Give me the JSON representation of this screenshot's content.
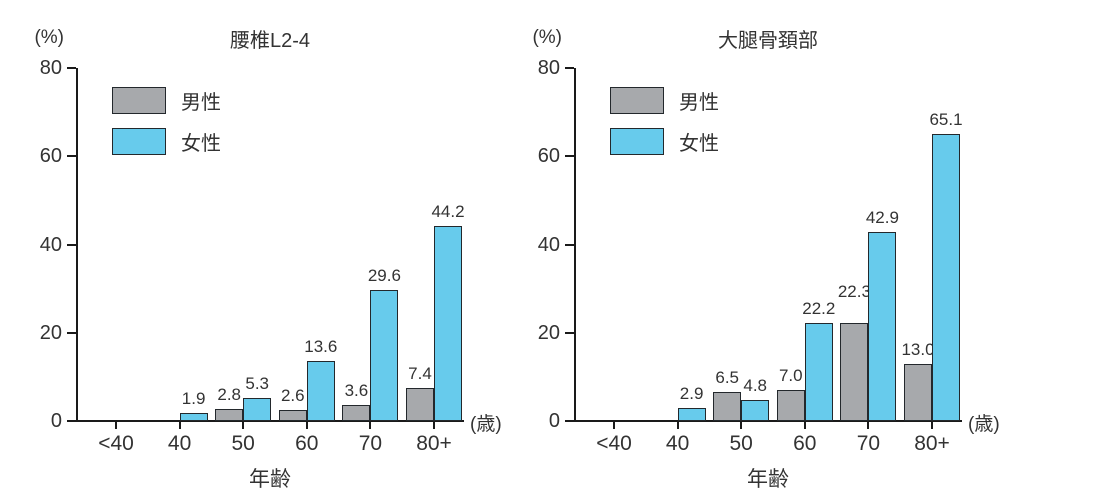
{
  "colors": {
    "male_fill": "#a7a9ac",
    "female_fill": "#67cbec",
    "bar_border": "#23282c",
    "axis": "#1a1a1a",
    "text": "#333333",
    "background": "#ffffff"
  },
  "chart_data": [
    {
      "type": "bar",
      "title": "腰椎L2-4",
      "y_axis_unit": "(%)",
      "x_axis_unit": "(歳)",
      "xlabel": "年齢",
      "ylabel": "",
      "ylim": [
        0,
        80
      ],
      "yticks": [
        0,
        20,
        40,
        60,
        80
      ],
      "grid": false,
      "legend_position": "top-left-inside",
      "categories": [
        "<40",
        "40",
        "50",
        "60",
        "70",
        "80+"
      ],
      "series": [
        {
          "name": "男性",
          "color": "#a7a9ac",
          "values": [
            null,
            null,
            2.8,
            2.6,
            3.6,
            7.4
          ],
          "labels": [
            "",
            "",
            "2.8",
            "2.6",
            "3.6",
            "7.4"
          ],
          "label_offsets": [
            0,
            0,
            0,
            0,
            0,
            0
          ]
        },
        {
          "name": "女性",
          "color": "#67cbec",
          "values": [
            null,
            1.9,
            5.3,
            13.6,
            29.6,
            44.2
          ],
          "labels": [
            "",
            "1.9",
            "5.3",
            "13.6",
            "29.6",
            "44.2"
          ],
          "label_offsets": [
            0,
            0,
            0,
            0,
            0,
            0
          ]
        }
      ]
    },
    {
      "type": "bar",
      "title": "大腿骨頚部",
      "y_axis_unit": "(%)",
      "x_axis_unit": "(歳)",
      "xlabel": "年齢",
      "ylabel": "",
      "ylim": [
        0,
        80
      ],
      "yticks": [
        0,
        20,
        40,
        60,
        80
      ],
      "grid": false,
      "legend_position": "top-left-inside",
      "categories": [
        "<40",
        "40",
        "50",
        "60",
        "70",
        "80+"
      ],
      "series": [
        {
          "name": "男性",
          "color": "#a7a9ac",
          "values": [
            null,
            null,
            6.5,
            7.0,
            22.3,
            13.0
          ],
          "labels": [
            "",
            "",
            "6.5",
            "7.0",
            "22.3",
            "13.0"
          ],
          "label_offsets": [
            0,
            0,
            0,
            0,
            -17,
            0
          ]
        },
        {
          "name": "女性",
          "color": "#67cbec",
          "values": [
            null,
            2.9,
            4.8,
            22.2,
            42.9,
            65.1
          ],
          "labels": [
            "",
            "2.9",
            "4.8",
            "22.2",
            "42.9",
            "65.1"
          ],
          "label_offsets": [
            0,
            0,
            0,
            0,
            0,
            0
          ]
        }
      ]
    }
  ]
}
